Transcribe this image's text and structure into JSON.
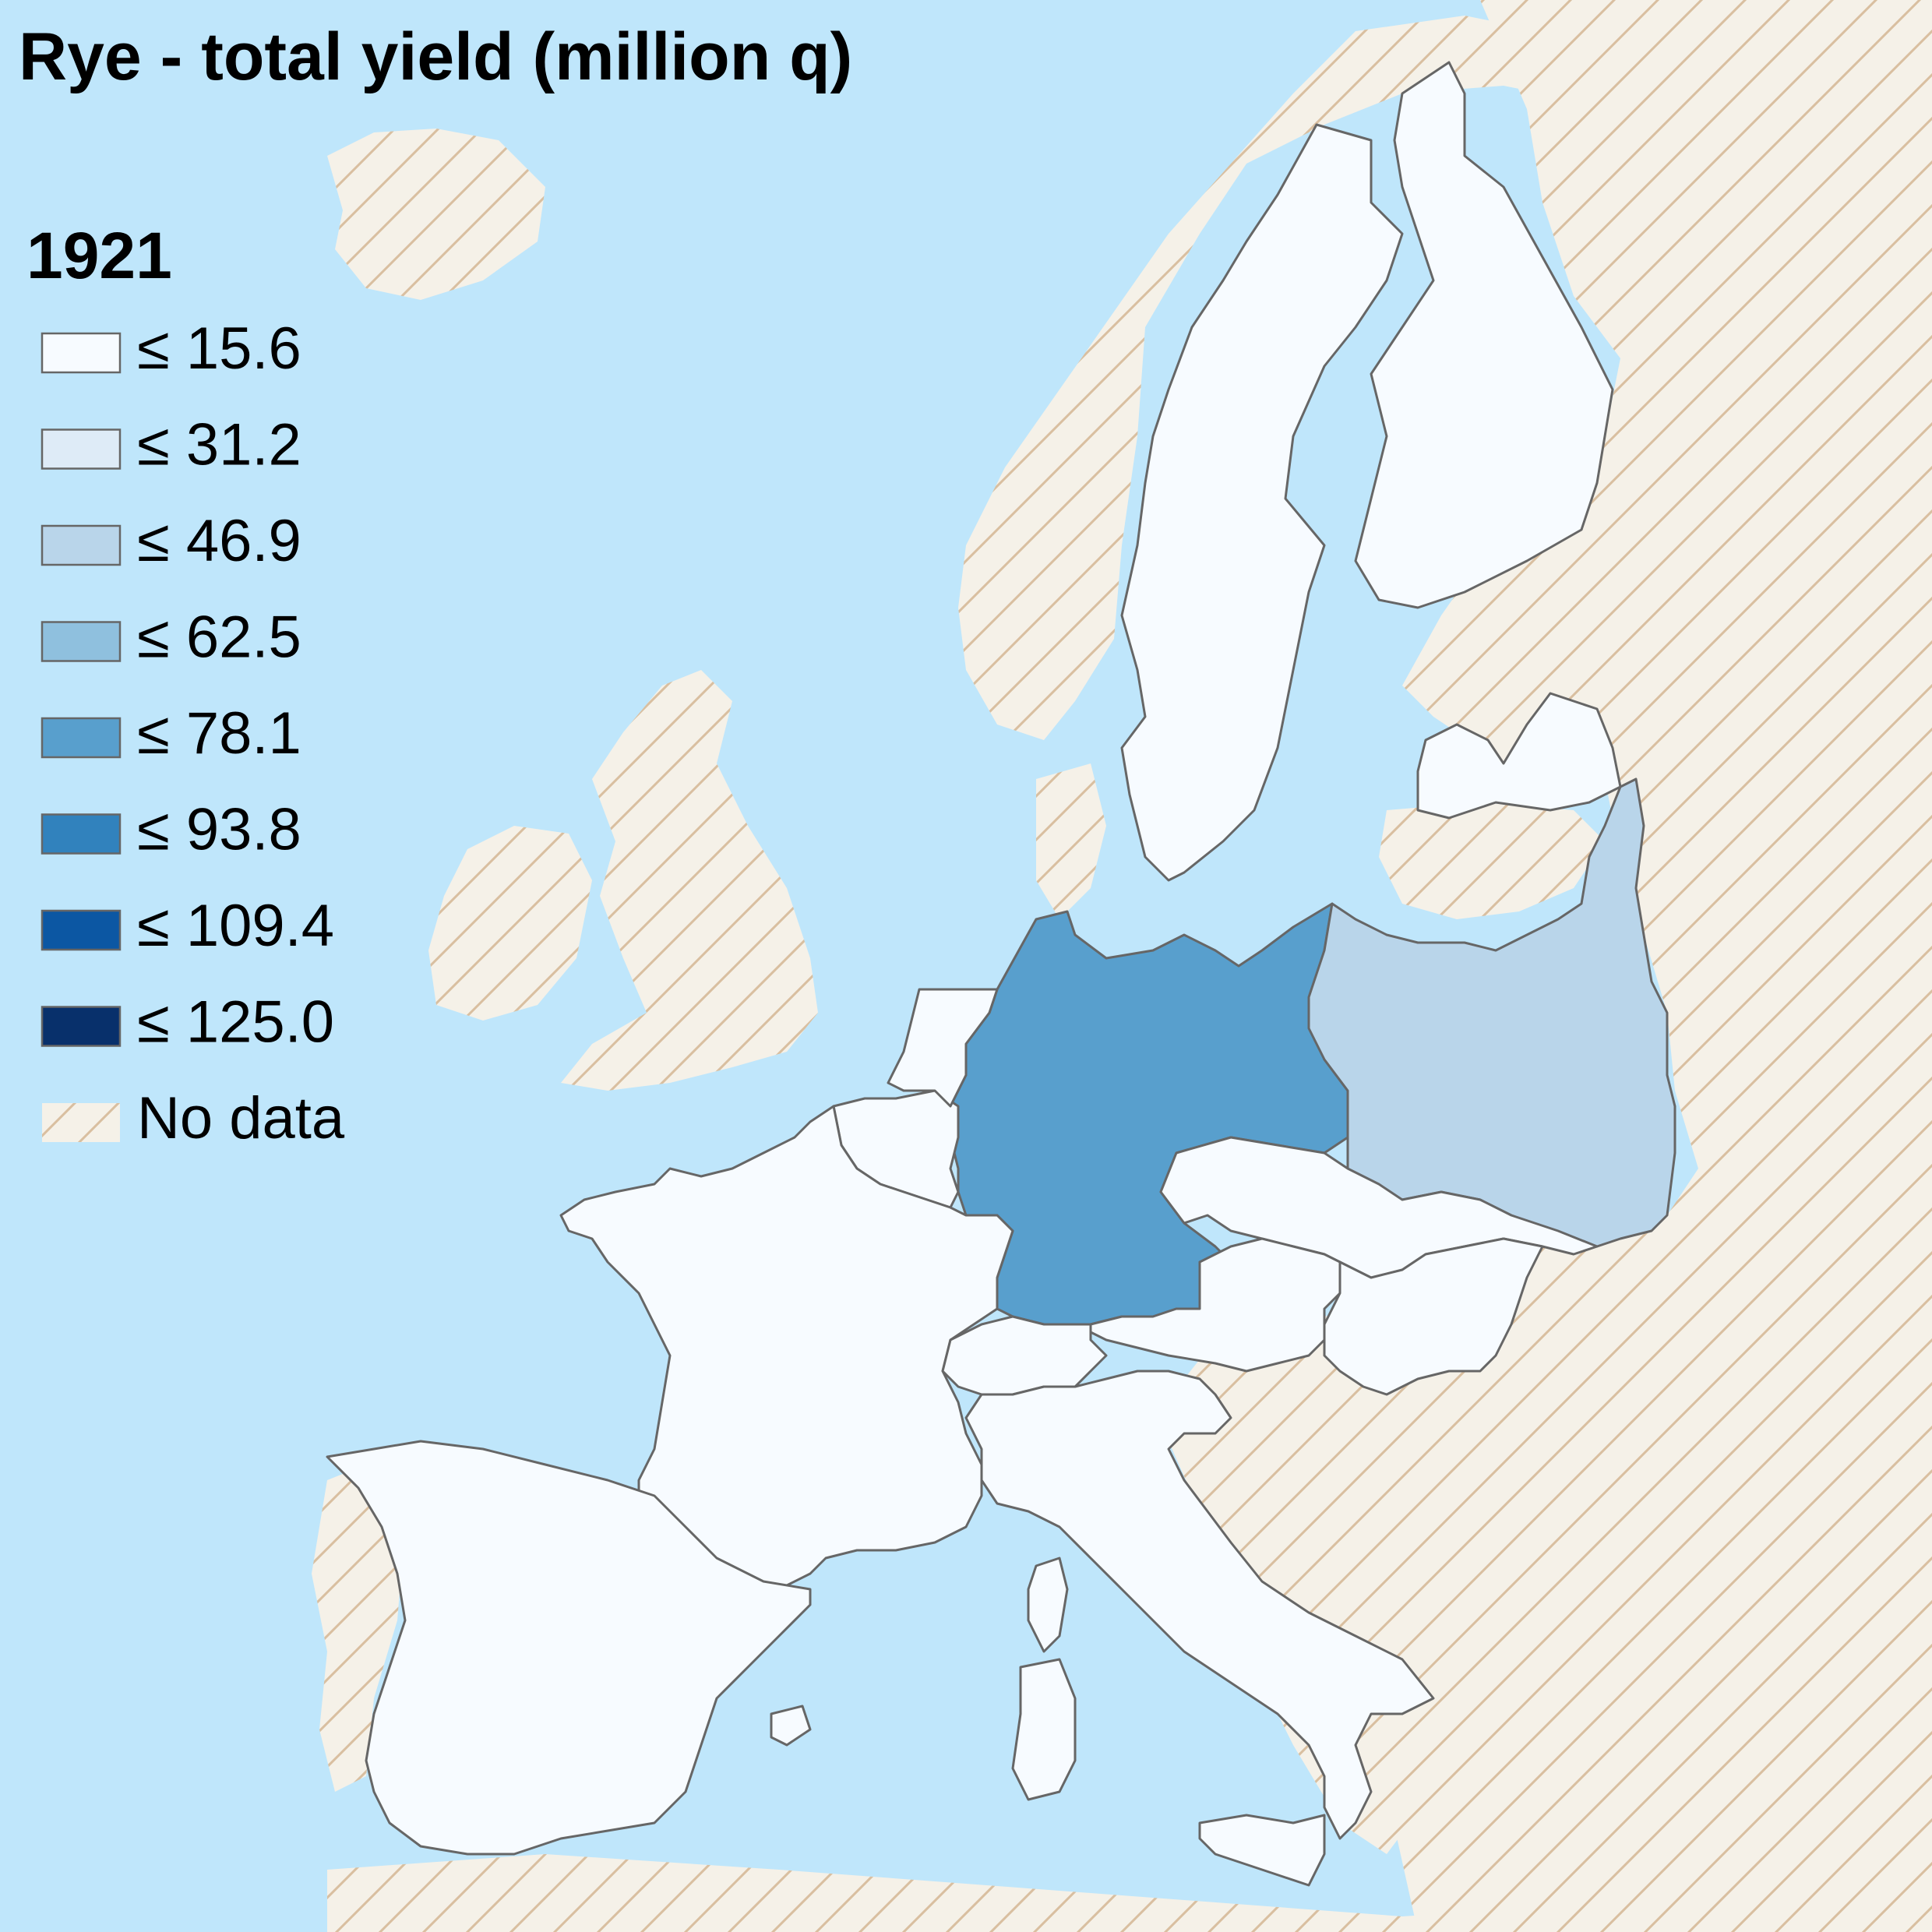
{
  "title": "Rye - total yield (million q)",
  "year": "1921",
  "colors": {
    "sea": "#bfe6fb",
    "nodata_fill": "#f5f1e8",
    "nodata_hatch": "#d9bfa0",
    "border": "#666666"
  },
  "legend": [
    {
      "label": "≤ 15.6",
      "color": "#f7fbff"
    },
    {
      "label": "≤ 31.2",
      "color": "#deebf7"
    },
    {
      "label": "≤ 46.9",
      "color": "#b9d5ea"
    },
    {
      "label": "≤ 62.5",
      "color": "#8fc0de"
    },
    {
      "label": "≤ 78.1",
      "color": "#589fcd"
    },
    {
      "label": "≤ 93.8",
      "color": "#3182bd"
    },
    {
      "label": "≤ 109.4",
      "color": "#0c57a3"
    },
    {
      "label": "≤ 125.0",
      "color": "#08306b"
    },
    {
      "label": "No data",
      "color": "nodata"
    }
  ],
  "regions": [
    {
      "name": "Germany",
      "class": "≤ 78.1"
    },
    {
      "name": "Poland",
      "class": "≤ 46.9"
    },
    {
      "name": "France",
      "class": "≤ 15.6"
    },
    {
      "name": "Spain",
      "class": "≤ 15.6"
    },
    {
      "name": "Italy",
      "class": "≤ 15.6"
    },
    {
      "name": "Sweden",
      "class": "≤ 15.6"
    },
    {
      "name": "Finland",
      "class": "≤ 15.6"
    },
    {
      "name": "Latvia",
      "class": "≤ 15.6"
    },
    {
      "name": "Czechoslovakia",
      "class": "≤ 15.6"
    },
    {
      "name": "Austria",
      "class": "≤ 15.6"
    },
    {
      "name": "Hungary",
      "class": "≤ 15.6"
    },
    {
      "name": "Switzerland",
      "class": "≤ 15.6"
    },
    {
      "name": "Belgium",
      "class": "≤ 15.6"
    },
    {
      "name": "Netherlands",
      "class": "≤ 15.6"
    },
    {
      "name": "Corsica",
      "class": "≤ 15.6"
    },
    {
      "name": "Sardinia",
      "class": "≤ 15.6"
    },
    {
      "name": "Sicily",
      "class": "≤ 15.6"
    },
    {
      "name": "Mallorca",
      "class": "≤ 15.6"
    }
  ]
}
